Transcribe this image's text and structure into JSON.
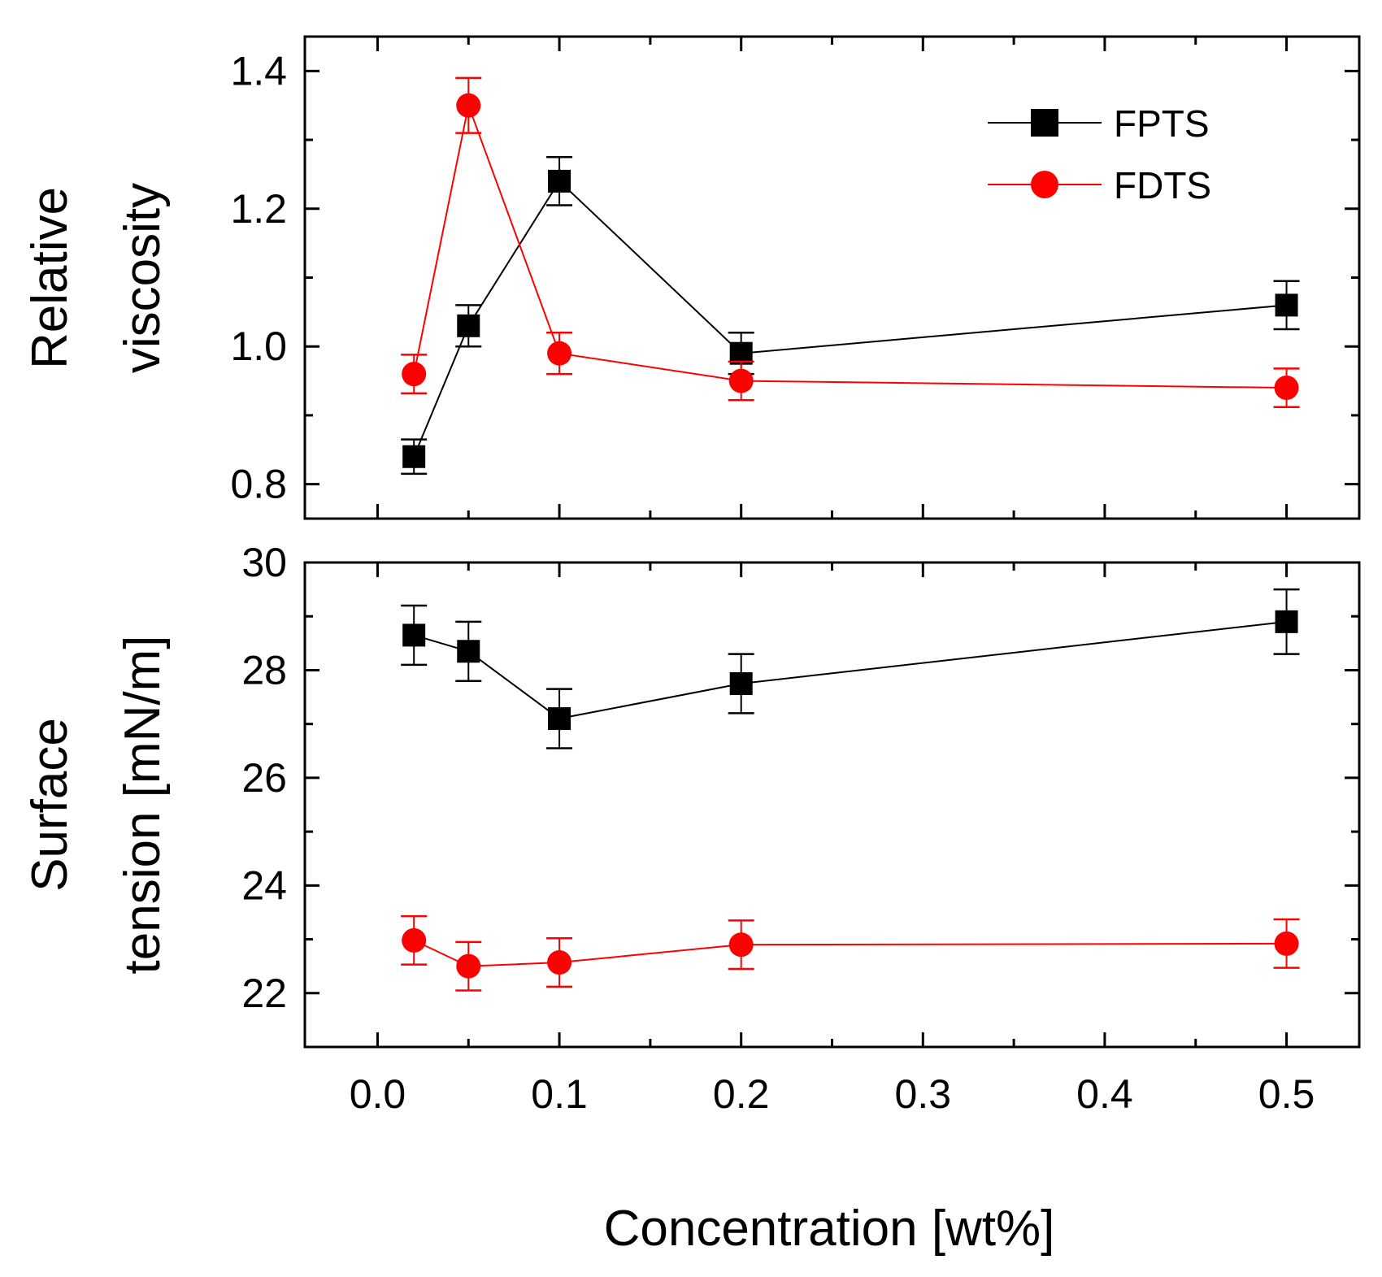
{
  "chart_data": [
    {
      "type": "line",
      "panel": "top",
      "ylabel_lines": [
        "Relative",
        "viscosity"
      ],
      "xlabel": "",
      "xlim": [
        -0.04,
        0.54
      ],
      "ylim": [
        0.75,
        1.45
      ],
      "yticks": [
        0.8,
        1.0,
        1.2,
        1.4
      ],
      "ytick_labels": [
        "0.8",
        "1.0",
        "1.2",
        "1.4"
      ],
      "legend": {
        "position": "top-right",
        "entries": [
          "FPTS",
          "FDTS"
        ]
      },
      "series": [
        {
          "name": "FPTS",
          "color": "#000000",
          "marker": "square",
          "x": [
            0.02,
            0.05,
            0.1,
            0.2,
            0.5
          ],
          "y": [
            0.84,
            1.03,
            1.24,
            0.99,
            1.06
          ],
          "error": [
            0.025,
            0.03,
            0.035,
            0.03,
            0.035
          ]
        },
        {
          "name": "FDTS",
          "color": "#ff0000",
          "marker": "circle",
          "x": [
            0.02,
            0.05,
            0.1,
            0.2,
            0.5
          ],
          "y": [
            0.96,
            1.35,
            0.99,
            0.95,
            0.94
          ],
          "error": [
            0.028,
            0.04,
            0.03,
            0.028,
            0.028
          ]
        }
      ]
    },
    {
      "type": "line",
      "panel": "bottom",
      "ylabel_lines": [
        "Surface",
        "tension [mN/m]"
      ],
      "xlabel": "Concentration [wt%]",
      "xlim": [
        -0.04,
        0.54
      ],
      "ylim": [
        21.0,
        30.0
      ],
      "yticks": [
        22,
        24,
        26,
        28,
        30
      ],
      "ytick_labels": [
        "22",
        "24",
        "26",
        "28",
        "30"
      ],
      "xticks": [
        0.0,
        0.1,
        0.2,
        0.3,
        0.4,
        0.5
      ],
      "xtick_labels": [
        "0.0",
        "0.1",
        "0.2",
        "0.3",
        "0.4",
        "0.5"
      ],
      "series": [
        {
          "name": "FPTS",
          "color": "#000000",
          "marker": "square",
          "x": [
            0.02,
            0.05,
            0.1,
            0.2,
            0.5
          ],
          "y": [
            28.65,
            28.35,
            27.1,
            27.75,
            28.9
          ],
          "error": [
            0.55,
            0.55,
            0.55,
            0.55,
            0.6
          ]
        },
        {
          "name": "FDTS",
          "color": "#ff0000",
          "marker": "circle",
          "x": [
            0.02,
            0.05,
            0.1,
            0.2,
            0.5
          ],
          "y": [
            22.98,
            22.5,
            22.57,
            22.9,
            22.92
          ],
          "error": [
            0.45,
            0.45,
            0.45,
            0.45,
            0.45
          ]
        }
      ]
    }
  ]
}
